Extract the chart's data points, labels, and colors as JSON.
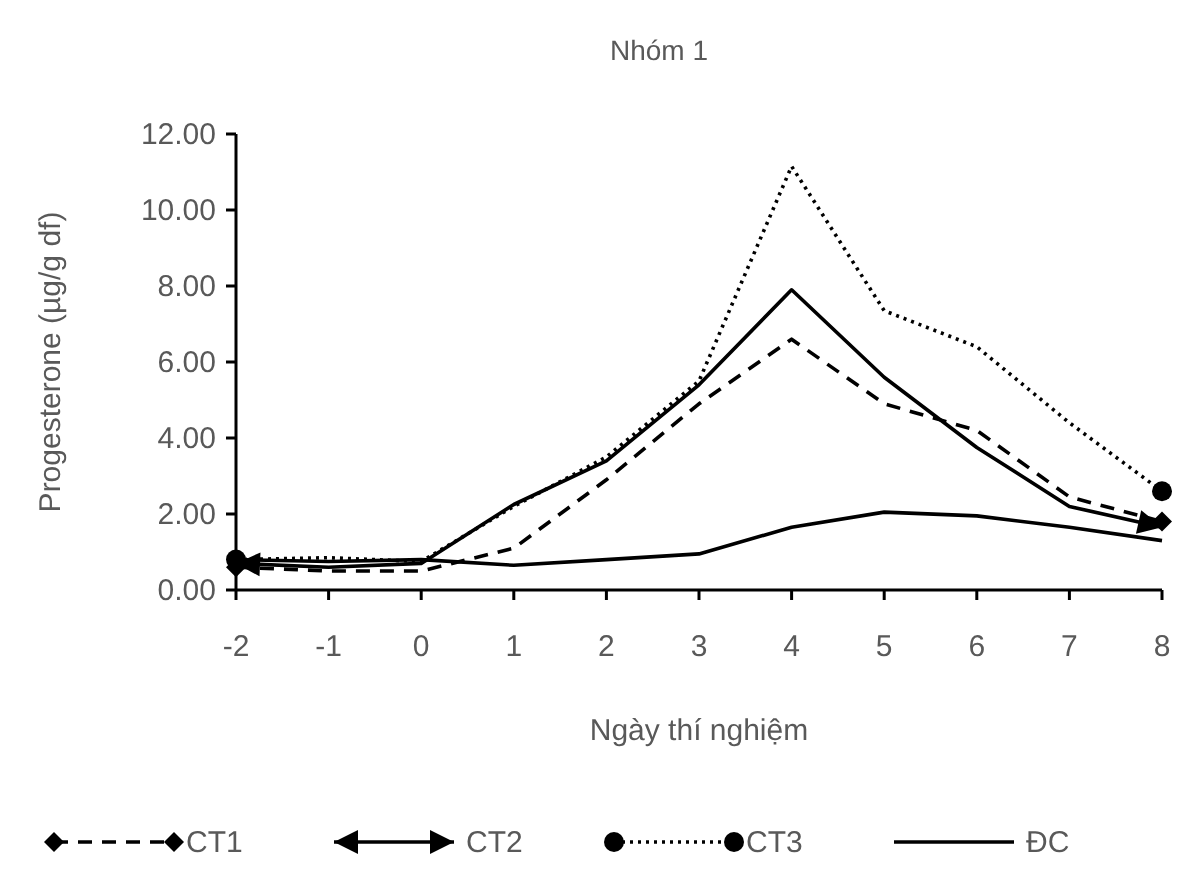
{
  "chart_data": {
    "type": "line",
    "title": "Nhóm 1",
    "xlabel": "Ngày thí nghiệm",
    "ylabel": "Progesterone (µg/g df)",
    "x": [
      -2,
      -1,
      0,
      1,
      2,
      3,
      4,
      5,
      6,
      7,
      8
    ],
    "xlim": [
      -2,
      8
    ],
    "xticks": [
      -2,
      -1,
      0,
      1,
      2,
      3,
      4,
      5,
      6,
      7,
      8
    ],
    "ylim": [
      0,
      12
    ],
    "yticks": [
      {
        "value": 0,
        "label": "0.00"
      },
      {
        "value": 2,
        "label": "2.00"
      },
      {
        "value": 4,
        "label": "4.00"
      },
      {
        "value": 6,
        "label": "6.00"
      },
      {
        "value": 8,
        "label": "8.00"
      },
      {
        "value": 10,
        "label": "10.00"
      },
      {
        "value": 12,
        "label": "12.00"
      }
    ],
    "grid": false,
    "legend": "bottom",
    "series": [
      {
        "name": "CT1",
        "color": "#000000",
        "line_style": "dashed",
        "values": [
          0.6,
          0.5,
          0.5,
          1.1,
          2.9,
          4.9,
          6.6,
          4.9,
          4.2,
          2.45,
          1.8
        ]
      },
      {
        "name": "CT2",
        "color": "#000000",
        "line_style": "solid",
        "values": [
          0.7,
          0.6,
          0.7,
          2.25,
          3.4,
          5.4,
          7.9,
          5.6,
          3.75,
          2.2,
          1.65
        ]
      },
      {
        "name": "CT3",
        "color": "#000000",
        "line_style": "dotted",
        "values": [
          0.8,
          0.85,
          0.75,
          2.2,
          3.5,
          5.5,
          11.15,
          7.35,
          6.4,
          4.4,
          2.6
        ]
      },
      {
        "name": "ĐC",
        "color": "#000000",
        "line_style": "solid",
        "values": [
          0.8,
          0.75,
          0.8,
          0.65,
          0.8,
          0.95,
          1.65,
          2.05,
          1.95,
          1.65,
          1.3
        ]
      }
    ]
  }
}
